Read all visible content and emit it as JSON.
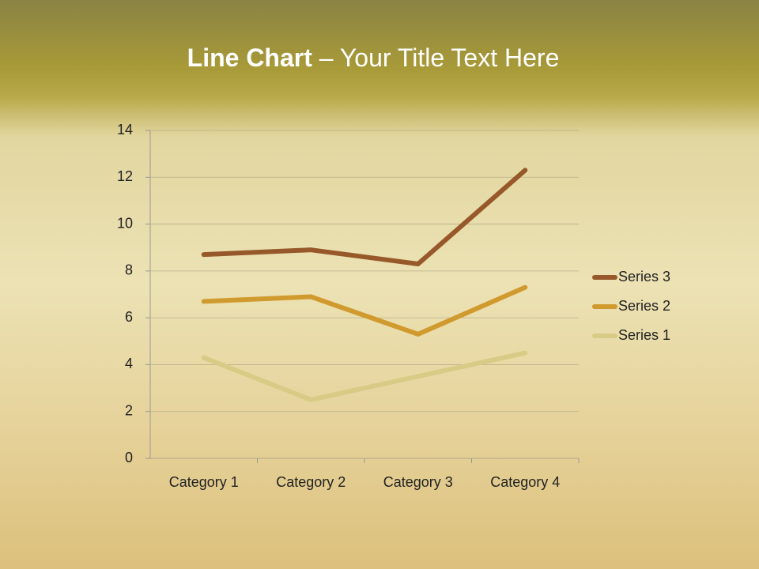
{
  "chart_data": {
    "type": "line",
    "stacked": true,
    "title": [
      "Line Chart",
      "– Your Title Text Here"
    ],
    "categories": [
      "Category 1",
      "Category 2",
      "Category 3",
      "Category 4"
    ],
    "series": [
      {
        "name": "Series 1",
        "color": "#d8cb86",
        "values": [
          4.3,
          2.5,
          3.5,
          4.5
        ]
      },
      {
        "name": "Series 2",
        "color": "#d19a2e",
        "values": [
          2.4,
          4.4,
          1.8,
          2.8
        ]
      },
      {
        "name": "Series 3",
        "color": "#98592a",
        "values": [
          2,
          2,
          3,
          5
        ]
      }
    ],
    "ylim": [
      0,
      14
    ],
    "yticks": [
      0,
      2,
      4,
      6,
      8,
      10,
      12,
      14
    ],
    "grid": true,
    "legend": "right"
  }
}
